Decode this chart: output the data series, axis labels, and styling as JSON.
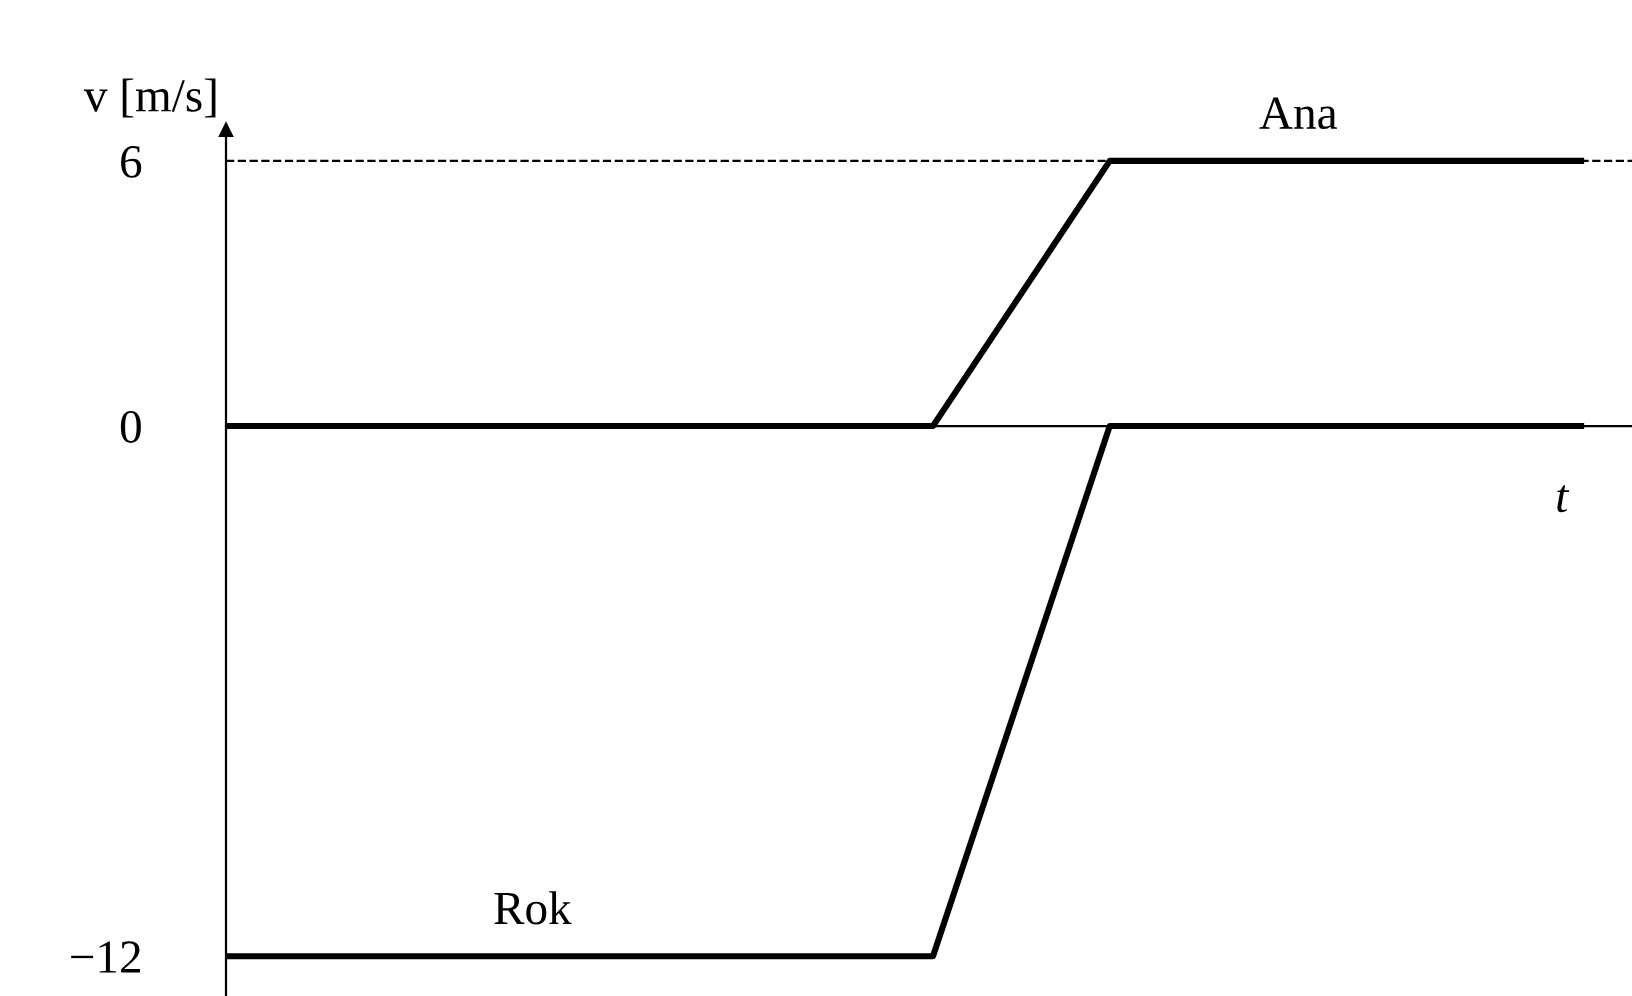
{
  "chart_data": {
    "type": "line",
    "xlabel": "t",
    "ylabel": "v [m/s]",
    "categories": [
      null,
      null,
      null,
      null,
      null,
      null,
      null,
      null,
      null,
      null,
      null,
      null,
      null,
      null,
      null,
      null,
      null,
      null,
      null,
      null,
      null,
      null,
      null,
      null
    ],
    "series": [
      {
        "name": "Ana",
        "color": "#000000",
        "values": [
          0,
          0,
          0,
          0,
          0,
          0,
          0,
          0,
          0,
          0,
          0,
          0,
          0,
          2,
          4,
          6,
          6,
          6,
          6,
          6,
          6,
          6,
          6,
          6
        ]
      },
      {
        "name": "Rok",
        "color": "#000000",
        "values": [
          -12,
          -12,
          -12,
          -12,
          -12,
          -12,
          -12,
          -12,
          -12,
          -12,
          -12,
          -12,
          -12,
          -8,
          -4,
          0,
          0,
          0,
          0,
          0,
          0,
          0,
          0,
          0
        ]
      }
    ],
    "ylim": [
      -12.9,
      6.7
    ],
    "yticks": [
      6,
      0,
      {
        "value": -12,
        "label": "−12"
      }
    ],
    "ref_lines": [
      {
        "axis": "y",
        "value": 6,
        "label": null,
        "line_style": "dashed",
        "color": "#000000"
      }
    ],
    "tick_labels": "y",
    "legend": false,
    "grid": false,
    "marker": "none",
    "line_style": "solid"
  }
}
